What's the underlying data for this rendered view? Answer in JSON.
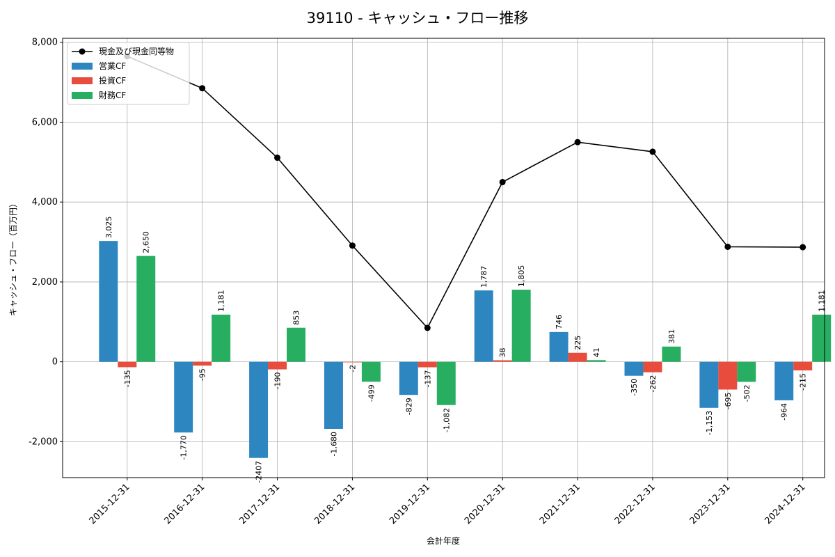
{
  "chart_data": {
    "type": "bar",
    "title": "39110 - キャッシュ・フロー推移",
    "xlabel": "会計年度",
    "ylabel": "キャッシュ・フロー（百万円）",
    "ylim": [
      -2900,
      8100
    ],
    "yticks": [
      -2000,
      0,
      2000,
      4000,
      6000,
      8000
    ],
    "ytick_labels": [
      "-2,000",
      "0",
      "2,000",
      "4,000",
      "6,000",
      "8,000"
    ],
    "grid": true,
    "legend_position": "top-left",
    "categories": [
      "2015-12-31",
      "2016-12-31",
      "2017-12-31",
      "2018-12-31",
      "2019-12-31",
      "2020-12-31",
      "2021-12-31",
      "2022-12-31",
      "2023-12-31",
      "2024-12-31"
    ],
    "series": [
      {
        "name": "営業CF",
        "kind": "bar",
        "color": "#2e86c1",
        "values": [
          3025,
          -1770,
          -2407,
          -1680,
          -829,
          1787,
          746,
          -350,
          -1153,
          -964
        ],
        "labels": [
          "3,025",
          "-1,770",
          "-2407",
          "-1,680",
          "-829",
          "1,787",
          "746",
          "-350",
          "-1,153",
          "-964"
        ]
      },
      {
        "name": "投資CF",
        "kind": "bar",
        "color": "#e74c3c",
        "values": [
          -135,
          -95,
          -190,
          -2,
          -137,
          38,
          225,
          -262,
          -695,
          -215
        ],
        "labels": [
          "-135",
          "-95",
          "-190",
          "-2",
          "-137",
          "38",
          "225",
          "-262",
          "-695",
          "-215"
        ]
      },
      {
        "name": "財務CF",
        "kind": "bar",
        "color": "#27ae60",
        "values": [
          2650,
          1181,
          853,
          -499,
          -1082,
          1805,
          41,
          381,
          -502,
          1181
        ],
        "labels": [
          "2,650",
          "1,181",
          "853",
          "-499",
          "-1,082",
          "1,805",
          "41",
          "381",
          "-502",
          "1,181"
        ]
      },
      {
        "name": "現金及び現金同等物",
        "kind": "line",
        "color": "#000000",
        "values": [
          7650,
          6850,
          5110,
          2910,
          850,
          4500,
          5500,
          5260,
          2880,
          2870
        ]
      }
    ]
  }
}
